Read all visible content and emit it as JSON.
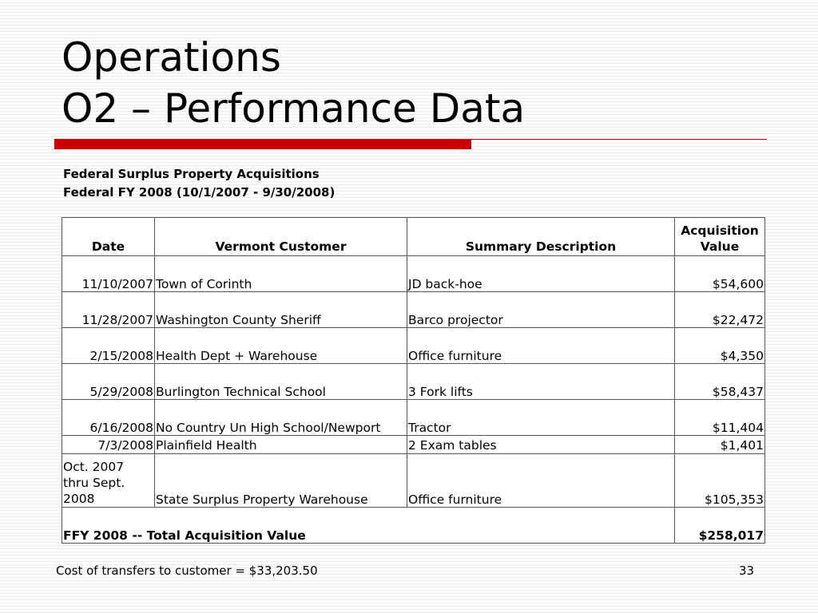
{
  "slide": {
    "title_line1": "Operations",
    "title_line2": "O2 – Performance Data",
    "subheading_line1": "Federal Surplus Property Acquisitions",
    "subheading_line2": "Federal FY 2008 (10/1/2007 - 9/30/2008)",
    "footer_note": "Cost of transfers to customer = $33,203.50",
    "page_number": "33",
    "accent_color": "#cc0000"
  },
  "table": {
    "headers": {
      "date": "Date",
      "customer": "Vermont Customer",
      "description": "Summary Description",
      "value_line1": "Acquisition",
      "value_line2": "Value"
    },
    "rows": [
      {
        "date": "11/10/2007",
        "customer": "Town of Corinth",
        "description": "JD back-hoe",
        "value": "$54,600"
      },
      {
        "date": "11/28/2007",
        "customer": "Washington County Sheriff",
        "description": "Barco projector",
        "value": "$22,472"
      },
      {
        "date": "2/15/2008",
        "customer": "Health Dept + Warehouse",
        "description": "Office furniture",
        "value": "$4,350"
      },
      {
        "date": "5/29/2008",
        "customer": "Burlington Technical School",
        "description": "3 Fork lifts",
        "value": "$58,437"
      },
      {
        "date": "6/16/2008",
        "customer": "No Country Un High School/Newport",
        "description": "Tractor",
        "value": "$11,404"
      },
      {
        "date": "7/3/2008",
        "customer": "Plainfield Health",
        "description": "2 Exam tables",
        "value": "$1,401"
      },
      {
        "date": "Oct. 2007 thru Sept. 2008",
        "customer": "State Surplus Property Warehouse",
        "description": "Office furniture",
        "value": "$105,353"
      }
    ],
    "total": {
      "label": "FFY 2008 -- Total Acquisition Value",
      "value": "$258,017"
    }
  }
}
